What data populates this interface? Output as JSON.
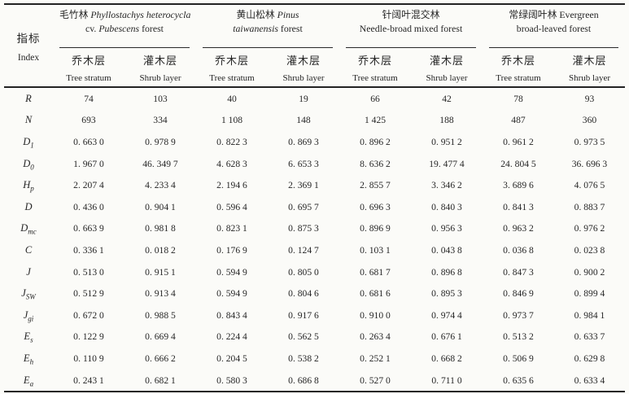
{
  "table": {
    "index_header": {
      "cn": "指标",
      "en": "Index"
    },
    "groups": [
      {
        "line1": [
          {
            "t": "毛竹林 ",
            "i": false
          },
          {
            "t": "Phyllostachys heterocycla",
            "i": true
          }
        ],
        "line2": [
          {
            "t": "cv. ",
            "i": false
          },
          {
            "t": "Pubescens",
            "i": true
          },
          {
            "t": " forest",
            "i": false
          }
        ]
      },
      {
        "line1": [
          {
            "t": "黄山松林 ",
            "i": false
          },
          {
            "t": "Pinus",
            "i": true
          }
        ],
        "line2": [
          {
            "t": "taiwanensis",
            "i": true
          },
          {
            "t": " forest",
            "i": false
          }
        ]
      },
      {
        "line1": [
          {
            "t": "针阔叶混交林",
            "i": false
          }
        ],
        "line2": [
          {
            "t": "Needle-broad mixed forest",
            "i": false
          }
        ]
      },
      {
        "line1": [
          {
            "t": "常绿阔叶林 Evergreen",
            "i": false
          }
        ],
        "line2": [
          {
            "t": "broad-leaved forest",
            "i": false
          }
        ]
      }
    ],
    "subheaders": [
      {
        "cn": "乔木层",
        "en": "Tree stratum"
      },
      {
        "cn": "灌木层",
        "en": "Shrub layer"
      },
      {
        "cn": "乔木层",
        "en": "Tree stratum"
      },
      {
        "cn": "灌木层",
        "en": "Shrub layer"
      },
      {
        "cn": "乔木层",
        "en": "Tree stratum"
      },
      {
        "cn": "灌木层",
        "en": "Shrub layer"
      },
      {
        "cn": "乔木层",
        "en": "Tree stratum"
      },
      {
        "cn": "灌木层",
        "en": "Shrub layer"
      }
    ],
    "rows": [
      {
        "label": {
          "base": "R",
          "sub": ""
        },
        "values": [
          "74",
          "103",
          "40",
          "19",
          "66",
          "42",
          "78",
          "93"
        ]
      },
      {
        "label": {
          "base": "N",
          "sub": ""
        },
        "values": [
          "693",
          "334",
          "1 108",
          "148",
          "1 425",
          "188",
          "487",
          "360"
        ]
      },
      {
        "label": {
          "base": "D",
          "sub": "1"
        },
        "values": [
          "0. 663 0",
          "0. 978 9",
          "0. 822 3",
          "0. 869 3",
          "0. 896 2",
          "0. 951 2",
          "0. 961 2",
          "0. 973 5"
        ]
      },
      {
        "label": {
          "base": "D",
          "sub": "0"
        },
        "values": [
          "1. 967 0",
          "46. 349 7",
          "4. 628 3",
          "6. 653 3",
          "8. 636 2",
          "19. 477 4",
          "24. 804 5",
          "36. 696 3"
        ]
      },
      {
        "label": {
          "base": "H",
          "sub": "p"
        },
        "values": [
          "2. 207 4",
          "4. 233 4",
          "2. 194 6",
          "2. 369 1",
          "2. 855 7",
          "3. 346 2",
          "3. 689 6",
          "4. 076 5"
        ]
      },
      {
        "label": {
          "base": "D",
          "sub": ""
        },
        "values": [
          "0. 436 0",
          "0. 904 1",
          "0. 596 4",
          "0. 695 7",
          "0. 696 3",
          "0. 840 3",
          "0. 841 3",
          "0. 883 7"
        ]
      },
      {
        "label": {
          "base": "D",
          "sub": "mc"
        },
        "values": [
          "0. 663 9",
          "0. 981 8",
          "0. 823 1",
          "0. 875 3",
          "0. 896 9",
          "0. 956 3",
          "0. 963 2",
          "0. 976 2"
        ]
      },
      {
        "label": {
          "base": "C",
          "sub": ""
        },
        "values": [
          "0. 336 1",
          "0. 018 2",
          "0. 176 9",
          "0. 124 7",
          "0. 103 1",
          "0. 043 8",
          "0. 036 8",
          "0. 023 8"
        ]
      },
      {
        "label": {
          "base": "J",
          "sub": ""
        },
        "values": [
          "0. 513 0",
          "0. 915 1",
          "0. 594 9",
          "0. 805 0",
          "0. 681 7",
          "0. 896 8",
          "0. 847 3",
          "0. 900 2"
        ]
      },
      {
        "label": {
          "base": "J",
          "sub": "SW"
        },
        "values": [
          "0. 512 9",
          "0. 913 4",
          "0. 594 9",
          "0. 804 6",
          "0. 681 6",
          "0. 895 3",
          "0. 846 9",
          "0. 899 4"
        ]
      },
      {
        "label": {
          "base": "J",
          "sub": "gi"
        },
        "values": [
          "0. 672 0",
          "0. 988 5",
          "0. 843 4",
          "0. 917 6",
          "0. 910 0",
          "0. 974 4",
          "0. 973 7",
          "0. 984 1"
        ]
      },
      {
        "label": {
          "base": "E",
          "sub": "s"
        },
        "values": [
          "0. 122 9",
          "0. 669 4",
          "0. 224 4",
          "0. 562 5",
          "0. 263 4",
          "0. 676 1",
          "0. 513 2",
          "0. 633 7"
        ]
      },
      {
        "label": {
          "base": "E",
          "sub": "h"
        },
        "values": [
          "0. 110 9",
          "0. 666 2",
          "0. 204 5",
          "0. 538 2",
          "0. 252 1",
          "0. 668 2",
          "0. 506 9",
          "0. 629 8"
        ]
      },
      {
        "label": {
          "base": "E",
          "sub": "a"
        },
        "values": [
          "0. 243 1",
          "0. 682 1",
          "0. 580 3",
          "0. 686 8",
          "0. 527 0",
          "0. 711 0",
          "0. 635 6",
          "0. 633 4"
        ]
      }
    ]
  }
}
